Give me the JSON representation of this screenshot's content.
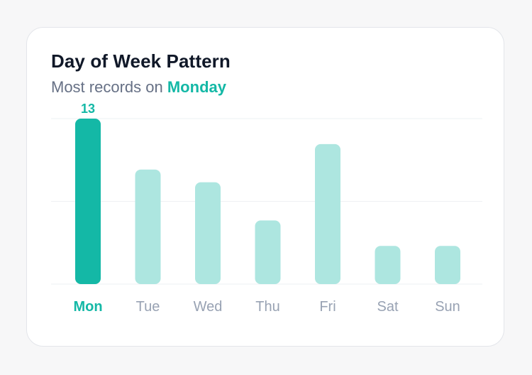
{
  "card": {
    "title": "Day of Week Pattern",
    "subtitle_prefix": "Most records on",
    "subtitle_highlight": "Monday"
  },
  "colors": {
    "accent": "#14b8a6",
    "bar_muted": "#ade6e0",
    "label_muted": "#98a2b3",
    "grid": "#eef0f3"
  },
  "chart_data": {
    "type": "bar",
    "categories": [
      "Mon",
      "Tue",
      "Wed",
      "Thu",
      "Fri",
      "Sat",
      "Sun"
    ],
    "values": [
      13,
      9,
      8,
      5,
      11,
      3,
      3
    ],
    "highlight_index": 0,
    "highlight_label": "13",
    "ylim": [
      0,
      13
    ],
    "grid": true,
    "gridlines": [
      0,
      6.5,
      13
    ]
  }
}
